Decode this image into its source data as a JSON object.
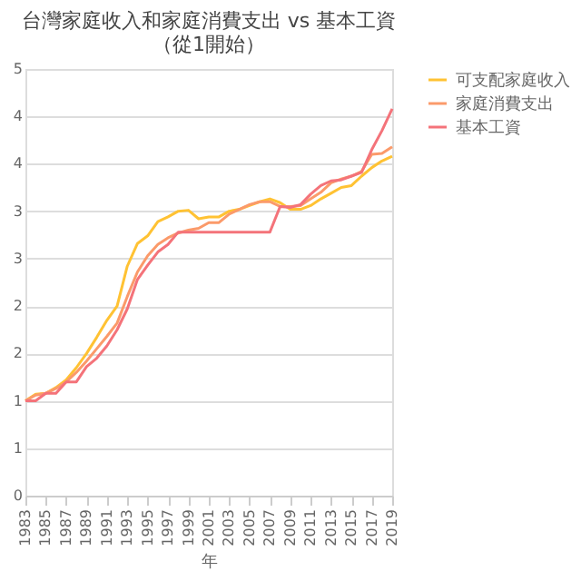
{
  "chart_data": {
    "type": "line",
    "title": [
      "台灣家庭收入和家庭消費支出 vs 基本工資",
      "（從1開始）"
    ],
    "xlabel": "年",
    "x": [
      1983,
      1984,
      1985,
      1986,
      1987,
      1988,
      1989,
      1990,
      1991,
      1992,
      1993,
      1994,
      1995,
      1996,
      1997,
      1998,
      1999,
      2000,
      2001,
      2002,
      2003,
      2004,
      2005,
      2006,
      2007,
      2008,
      2009,
      2010,
      2011,
      2012,
      2013,
      2014,
      2015,
      2016,
      2017,
      2018,
      2019
    ],
    "series": [
      {
        "name": "可支配家庭收入",
        "color": "#ffc233",
        "values": [
          1.0,
          1.07,
          1.08,
          1.14,
          1.22,
          1.35,
          1.5,
          1.67,
          1.85,
          2.0,
          2.42,
          2.66,
          2.74,
          2.89,
          2.94,
          3.0,
          3.01,
          2.92,
          2.94,
          2.94,
          3.0,
          3.02,
          3.06,
          3.1,
          3.13,
          3.09,
          3.02,
          3.02,
          3.06,
          3.13,
          3.19,
          3.25,
          3.27,
          3.37,
          3.46,
          3.53,
          3.58
        ]
      },
      {
        "name": "家庭消費支出",
        "color": "#fb9a6a",
        "values": [
          1.0,
          1.06,
          1.08,
          1.13,
          1.2,
          1.3,
          1.42,
          1.55,
          1.68,
          1.82,
          2.1,
          2.36,
          2.53,
          2.65,
          2.72,
          2.77,
          2.8,
          2.82,
          2.88,
          2.88,
          2.97,
          3.02,
          3.07,
          3.1,
          3.1,
          3.05,
          3.05,
          3.06,
          3.13,
          3.2,
          3.3,
          3.34,
          3.37,
          3.42,
          3.6,
          3.61,
          3.68
        ]
      },
      {
        "name": "基本工資",
        "color": "#f4737a",
        "values": [
          1.0,
          1.0,
          1.08,
          1.08,
          1.2,
          1.2,
          1.36,
          1.45,
          1.58,
          1.75,
          1.97,
          2.28,
          2.43,
          2.57,
          2.65,
          2.78,
          2.78,
          2.78,
          2.78,
          2.78,
          2.78,
          2.78,
          2.78,
          2.78,
          2.78,
          3.05,
          3.04,
          3.07,
          3.18,
          3.27,
          3.32,
          3.33,
          3.37,
          3.41,
          3.65,
          3.85,
          4.08
        ]
      }
    ],
    "xlim": [
      1983,
      2019
    ],
    "xticks": [
      1983,
      1985,
      1987,
      1989,
      1991,
      1993,
      1995,
      1997,
      1999,
      2001,
      2003,
      2005,
      2007,
      2009,
      2011,
      2013,
      2015,
      2017,
      2019
    ],
    "ylim": [
      0,
      4.5
    ],
    "yticks": [
      0,
      {
        "value": 0.5,
        "label": "1"
      },
      1,
      {
        "value": 1.5,
        "label": "2"
      },
      2,
      {
        "value": 2.5,
        "label": "3"
      },
      3,
      {
        "value": 3.5,
        "label": "4"
      },
      4,
      {
        "value": 4.5,
        "label": "5"
      }
    ],
    "grid": "y",
    "legend": "right",
    "marker": "none",
    "line_style": "solid"
  }
}
